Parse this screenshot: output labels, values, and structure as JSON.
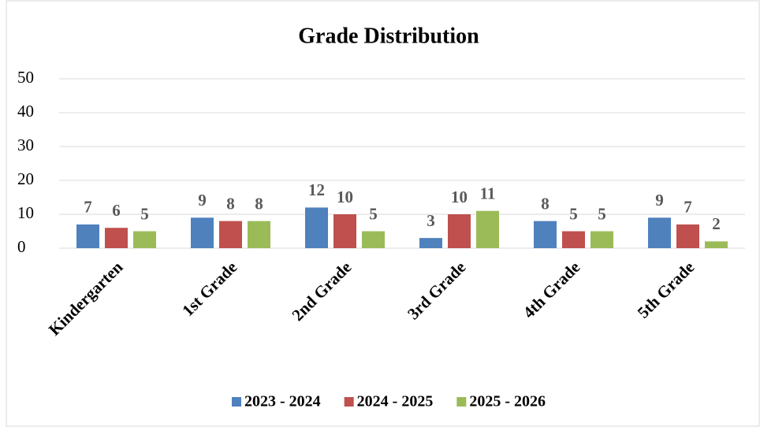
{
  "chart_data": {
    "type": "bar",
    "title": "Grade Distribution",
    "categories": [
      "Kindergarten",
      "1st Grade",
      "2nd Grade",
      "3rd Grade",
      "4th Grade",
      "5th Grade"
    ],
    "series": [
      {
        "name": "2023 - 2024",
        "color": "#4f81bd",
        "values": [
          7,
          9,
          12,
          3,
          8,
          9
        ]
      },
      {
        "name": "2024 - 2025",
        "color": "#c0504d",
        "values": [
          6,
          8,
          10,
          10,
          5,
          7
        ]
      },
      {
        "name": "2025 - 2026",
        "color": "#9bbb59",
        "values": [
          5,
          8,
          5,
          11,
          5,
          2
        ]
      }
    ],
    "ylim": [
      0,
      50
    ],
    "yticks": [
      0,
      10,
      20,
      30,
      40,
      50
    ],
    "grid": true,
    "legend": "bottom"
  }
}
